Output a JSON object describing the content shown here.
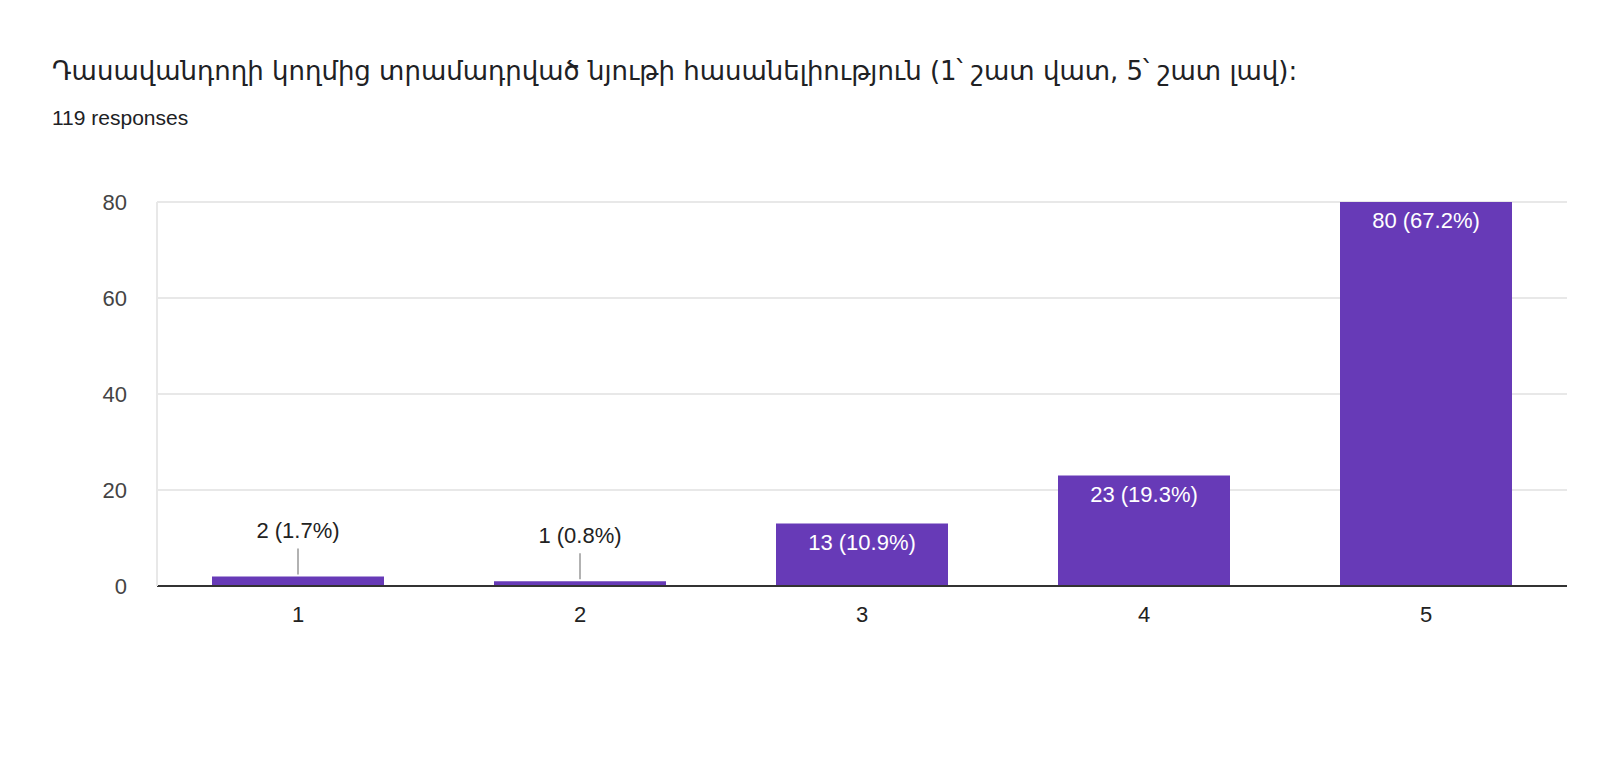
{
  "chart_data": {
    "type": "bar",
    "title": "Դասավանդողի կողմից տրամադրված նյութի հասանելիություն (1՝ շատ վատ, 5՝ շատ լավ):",
    "subtitle": "119 responses",
    "categories": [
      "1",
      "2",
      "3",
      "4",
      "5"
    ],
    "values": [
      2,
      1,
      13,
      23,
      80
    ],
    "value_labels": [
      "2 (1.7%)",
      "1 (0.8%)",
      "13 (10.9%)",
      "23 (19.3%)",
      "80 (67.2%)"
    ],
    "color": "#673ab7",
    "ylim": [
      0,
      80
    ],
    "yticks": [
      0,
      20,
      40,
      60,
      80
    ],
    "grid": true,
    "data_labels": true
  }
}
